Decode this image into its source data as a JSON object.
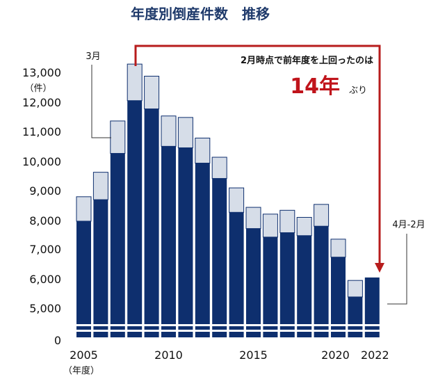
{
  "chart_data": {
    "type": "bar",
    "title": "年度別倒産件数　推移",
    "ylabel_unit": "（件）",
    "x_unit": "（年度）",
    "categories": [
      "2005",
      "2006",
      "2007",
      "2008",
      "2009",
      "2010",
      "2011",
      "2012",
      "2013",
      "2014",
      "2015",
      "2016",
      "2017",
      "2018",
      "2019",
      "2020",
      "2021",
      "2022"
    ],
    "x_tick_labels": [
      "2005",
      "2010",
      "2015",
      "2020",
      "2022"
    ],
    "y_ticks": [
      "13,000",
      "12,000",
      "11,000",
      "10,000",
      "9,000",
      "8,000",
      "7,000",
      "6,000",
      "5,000",
      "0"
    ],
    "series": [
      {
        "name": "4月-2月",
        "values": [
          7950,
          8680,
          10250,
          12040,
          11760,
          10490,
          10440,
          9920,
          9400,
          8250,
          7700,
          7410,
          7560,
          7460,
          7780,
          6730,
          5380,
          6040
        ]
      },
      {
        "name": "3月",
        "values": [
          830,
          930,
          1100,
          1240,
          1110,
          1030,
          1030,
          850,
          720,
          830,
          720,
          780,
          760,
          620,
          740,
          610,
          560,
          0
        ]
      }
    ],
    "ylim": [
      0,
      13000
    ],
    "axis_break": true,
    "label_3month": "3月",
    "label_apr_feb": "4月-2月",
    "highlight": {
      "text_line1": "2月時点で前年度を上回ったのは",
      "text_big": "14年",
      "text_suffix": "ぶり",
      "from_category": "2008",
      "to_category": "2022"
    }
  },
  "colors": {
    "main": "#0e2f6e",
    "top": "#d6dde8",
    "arrow": "#b71c1c",
    "title": "#1f3a6b"
  }
}
